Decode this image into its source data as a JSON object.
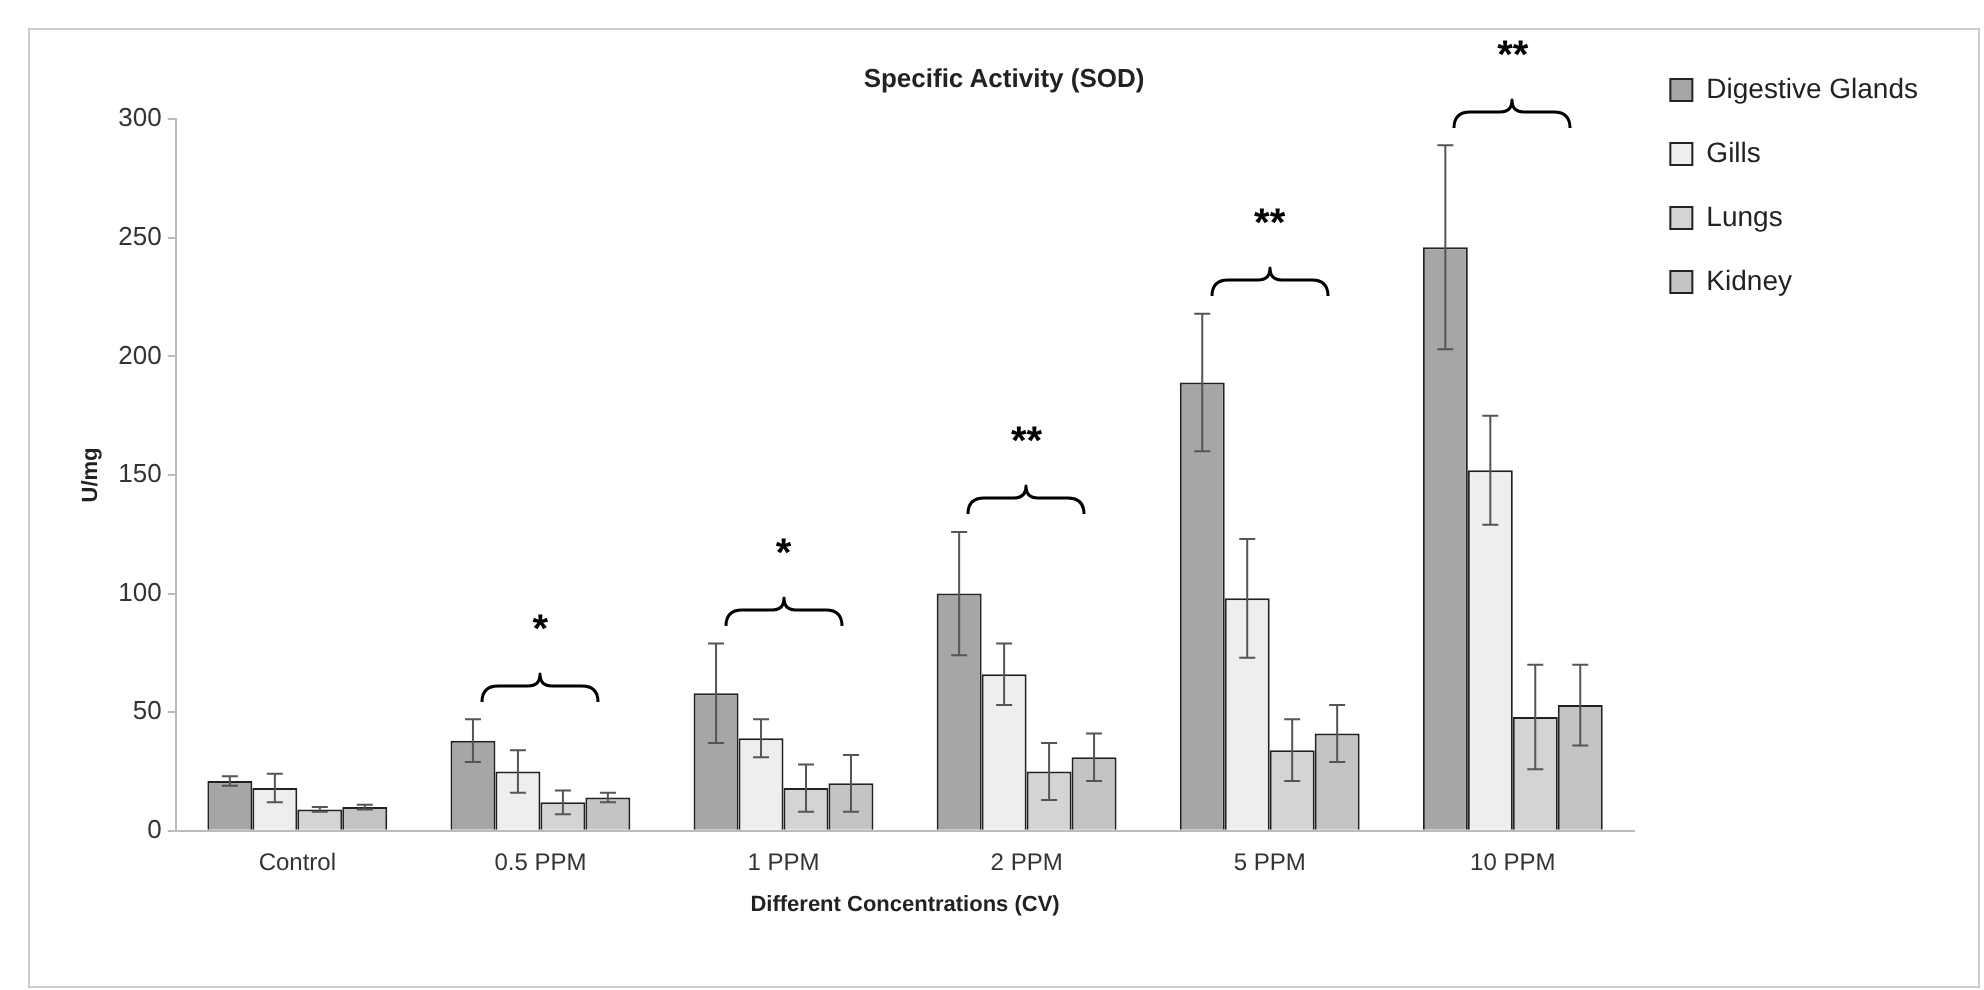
{
  "chart_data": {
    "type": "bar",
    "title": "Specific Activity (SOD)",
    "xlabel": "Different Concentrations (CV)",
    "ylabel": "U/mg",
    "categories": [
      "Control",
      "0.5 PPM",
      "1 PPM",
      "2 PPM",
      "5 PPM",
      "10 PPM"
    ],
    "series": [
      {
        "name": "Digestive Glands",
        "color": "#a6a6a6",
        "values": [
          21,
          38,
          58,
          100,
          189,
          246
        ],
        "errors": [
          2,
          9,
          21,
          26,
          29,
          43
        ]
      },
      {
        "name": "Gills",
        "color": "#eeeeee",
        "values": [
          18,
          25,
          39,
          66,
          98,
          152
        ],
        "errors": [
          6,
          9,
          8,
          13,
          25,
          23
        ]
      },
      {
        "name": "Lungs",
        "color": "#d4d4d4",
        "values": [
          9,
          12,
          18,
          25,
          34,
          48
        ],
        "errors": [
          1,
          5,
          10,
          12,
          13,
          22
        ]
      },
      {
        "name": "Kidney",
        "color": "#c4c4c4",
        "values": [
          10,
          14,
          20,
          31,
          41,
          53
        ],
        "errors": [
          1,
          2,
          12,
          10,
          12,
          17
        ]
      }
    ],
    "annotations": [
      "*",
      "*",
      "**",
      "**",
      "**"
    ],
    "ylim": [
      0,
      300
    ],
    "yticks": [
      0,
      50,
      100,
      150,
      200,
      250,
      300
    ],
    "grid": false,
    "legend": "right"
  }
}
